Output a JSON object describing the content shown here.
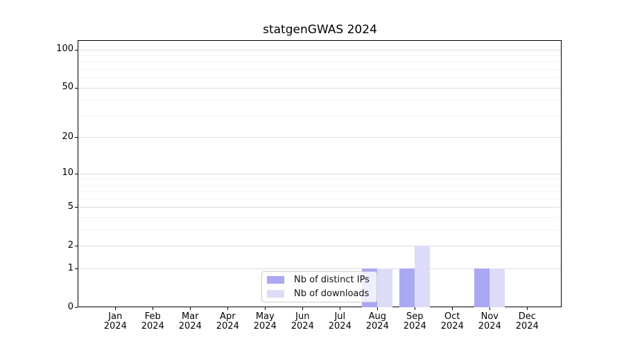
{
  "title": "statgenGWAS 2024",
  "chart_data": {
    "type": "bar",
    "title": "statgenGWAS 2024",
    "categories": [
      "Jan",
      "Feb",
      "Mar",
      "Apr",
      "May",
      "Jun",
      "Jul",
      "Aug",
      "Sep",
      "Oct",
      "Nov",
      "Dec"
    ],
    "x_year": "2024",
    "series": [
      {
        "name": "Nb of distinct IPs",
        "color": "#a8a8f4",
        "values": [
          0,
          0,
          0,
          0,
          0,
          0,
          0,
          1,
          1,
          0,
          1,
          0
        ]
      },
      {
        "name": "Nb of downloads",
        "color": "#dcdcf9",
        "values": [
          0,
          0,
          0,
          0,
          0,
          0,
          0,
          1,
          2,
          0,
          1,
          0
        ]
      }
    ],
    "yscale": "log1p",
    "yticks_major": [
      0,
      1,
      2,
      5,
      10,
      20,
      50,
      100
    ],
    "yticks_minor": [
      3,
      4,
      6,
      7,
      8,
      9,
      30,
      40,
      60,
      70,
      80,
      90
    ],
    "ylim": [
      0,
      115.6
    ],
    "grid": "horizontal-only",
    "legend": {
      "position": "bottom-center"
    }
  },
  "colors": {
    "background": "#ffffff",
    "spine": "#000000",
    "grid_major": "#dcdcdc",
    "grid_minor": "#f3f3f3",
    "bar_distinct_ips": "#a8a8f4",
    "bar_downloads": "#dcdcf9",
    "legend_border": "#cccccc",
    "text": "#000000"
  }
}
